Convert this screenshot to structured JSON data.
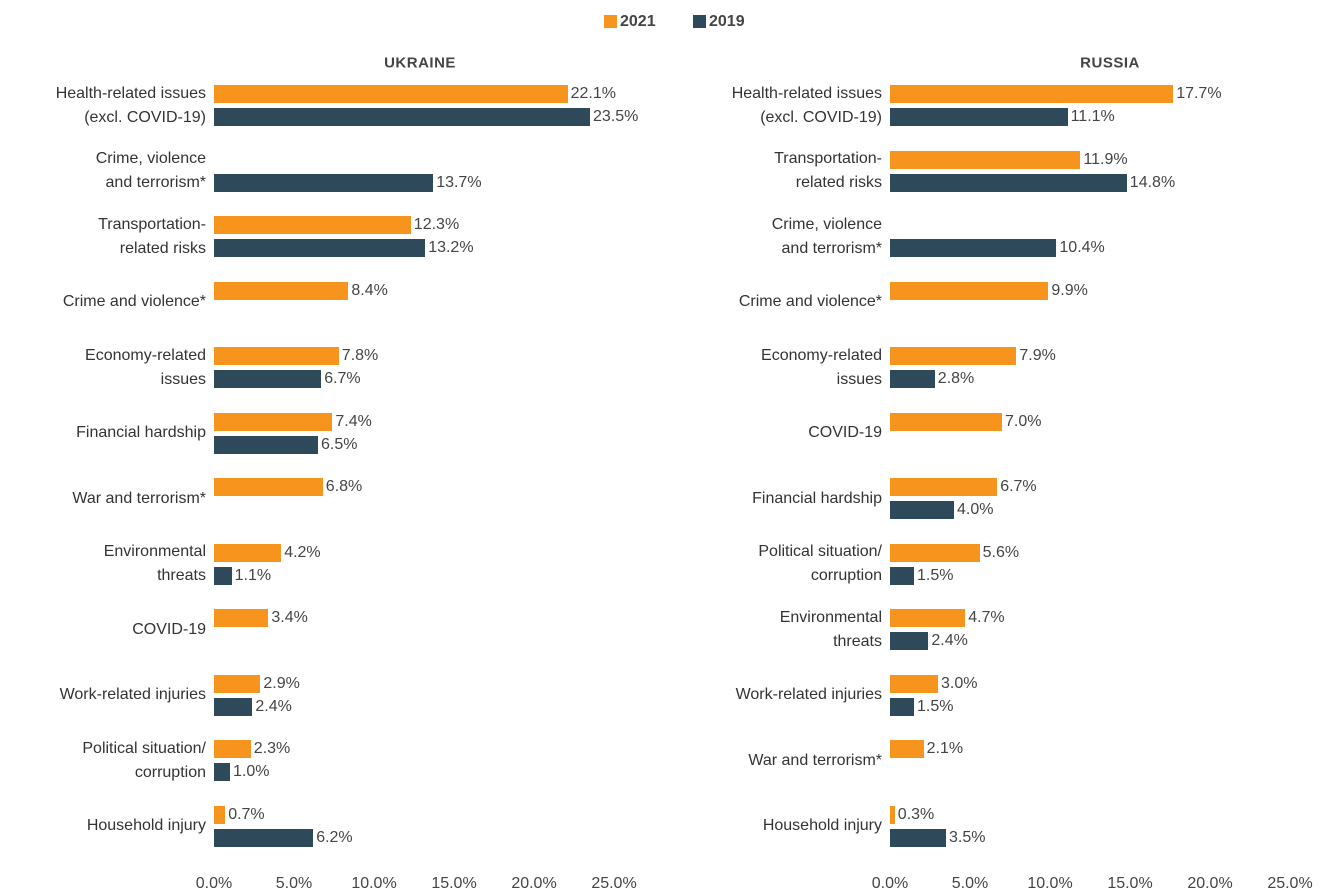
{
  "chart_data": [
    {
      "type": "bar",
      "orientation": "horizontal",
      "title": "UKRAINE",
      "categories": [
        "Health-related issues\n(excl. COVID-19)",
        "Crime, violence\nand terrorism*",
        "Transportation-\nrelated risks",
        "Crime and violence*",
        "Economy-related\nissues",
        "Financial hardship",
        "War and terrorism*",
        "Environmental\nthreats",
        "COVID-19",
        "Work-related injuries",
        "Political situation/\ncorruption",
        "Household injury"
      ],
      "series": [
        {
          "name": "2021",
          "color": "#f7941d",
          "values": [
            22.1,
            null,
            12.3,
            8.4,
            7.8,
            7.4,
            6.8,
            4.2,
            3.4,
            2.9,
            2.3,
            0.7
          ],
          "value_labels": [
            "22.1%",
            null,
            "12.3%",
            "8.4%",
            "7.8%",
            "7.4%",
            "6.8%",
            "4.2%",
            "3.4%",
            "2.9%",
            "2.3%",
            "0.7%"
          ]
        },
        {
          "name": "2019",
          "color": "#2e4a5a",
          "values": [
            23.5,
            13.7,
            13.2,
            null,
            6.7,
            6.5,
            null,
            1.1,
            null,
            2.4,
            1.0,
            6.2
          ],
          "value_labels": [
            "23.5%",
            "13.7%",
            "13.2%",
            null,
            "6.7%",
            "6.5%",
            null,
            "1.1%",
            null,
            "2.4%",
            "1.0%",
            "6.2%"
          ]
        }
      ],
      "xlim": [
        0,
        25
      ],
      "xticks": [
        {
          "value": 0,
          "label": "0.0%"
        },
        {
          "value": 5,
          "label": "5.0%"
        },
        {
          "value": 10,
          "label": "10.0%"
        },
        {
          "value": 15,
          "label": "15.0%"
        },
        {
          "value": 20,
          "label": "20.0%"
        },
        {
          "value": 25,
          "label": "25.0%"
        }
      ]
    },
    {
      "type": "bar",
      "orientation": "horizontal",
      "title": "RUSSIA",
      "categories": [
        "Health-related issues\n(excl. COVID-19)",
        "Transportation-\nrelated risks",
        "Crime, violence\nand terrorism*",
        "Crime and violence*",
        "Economy-related\nissues",
        "COVID-19",
        "Financial hardship",
        "Political situation/\ncorruption",
        "Environmental\nthreats",
        "Work-related injuries",
        "War and terrorism*",
        "Household injury"
      ],
      "series": [
        {
          "name": "2021",
          "color": "#f7941d",
          "values": [
            17.7,
            11.9,
            null,
            9.9,
            7.9,
            7.0,
            6.7,
            5.6,
            4.7,
            3.0,
            2.1,
            0.3
          ],
          "value_labels": [
            "17.7%",
            "11.9%",
            null,
            "9.9%",
            "7.9%",
            "7.0%",
            "6.7%",
            "5.6%",
            "4.7%",
            "3.0%",
            "2.1%",
            "0.3%"
          ]
        },
        {
          "name": "2019",
          "color": "#2e4a5a",
          "values": [
            11.1,
            14.8,
            10.4,
            null,
            2.8,
            null,
            4.0,
            1.5,
            2.4,
            1.5,
            null,
            3.5
          ],
          "value_labels": [
            "11.1%",
            "14.8%",
            "10.4%",
            null,
            "2.8%",
            null,
            "4.0%",
            "1.5%",
            "2.4%",
            "1.5%",
            null,
            "3.5%"
          ]
        }
      ],
      "xlim": [
        0,
        25
      ],
      "xticks": [
        {
          "value": 0,
          "label": "0.0%"
        },
        {
          "value": 5,
          "label": "5.0%"
        },
        {
          "value": 10,
          "label": "10.0%"
        },
        {
          "value": 15,
          "label": "15.0%"
        },
        {
          "value": 20,
          "label": "20.0%"
        },
        {
          "value": 25,
          "label": "25.0%"
        }
      ]
    }
  ]
}
